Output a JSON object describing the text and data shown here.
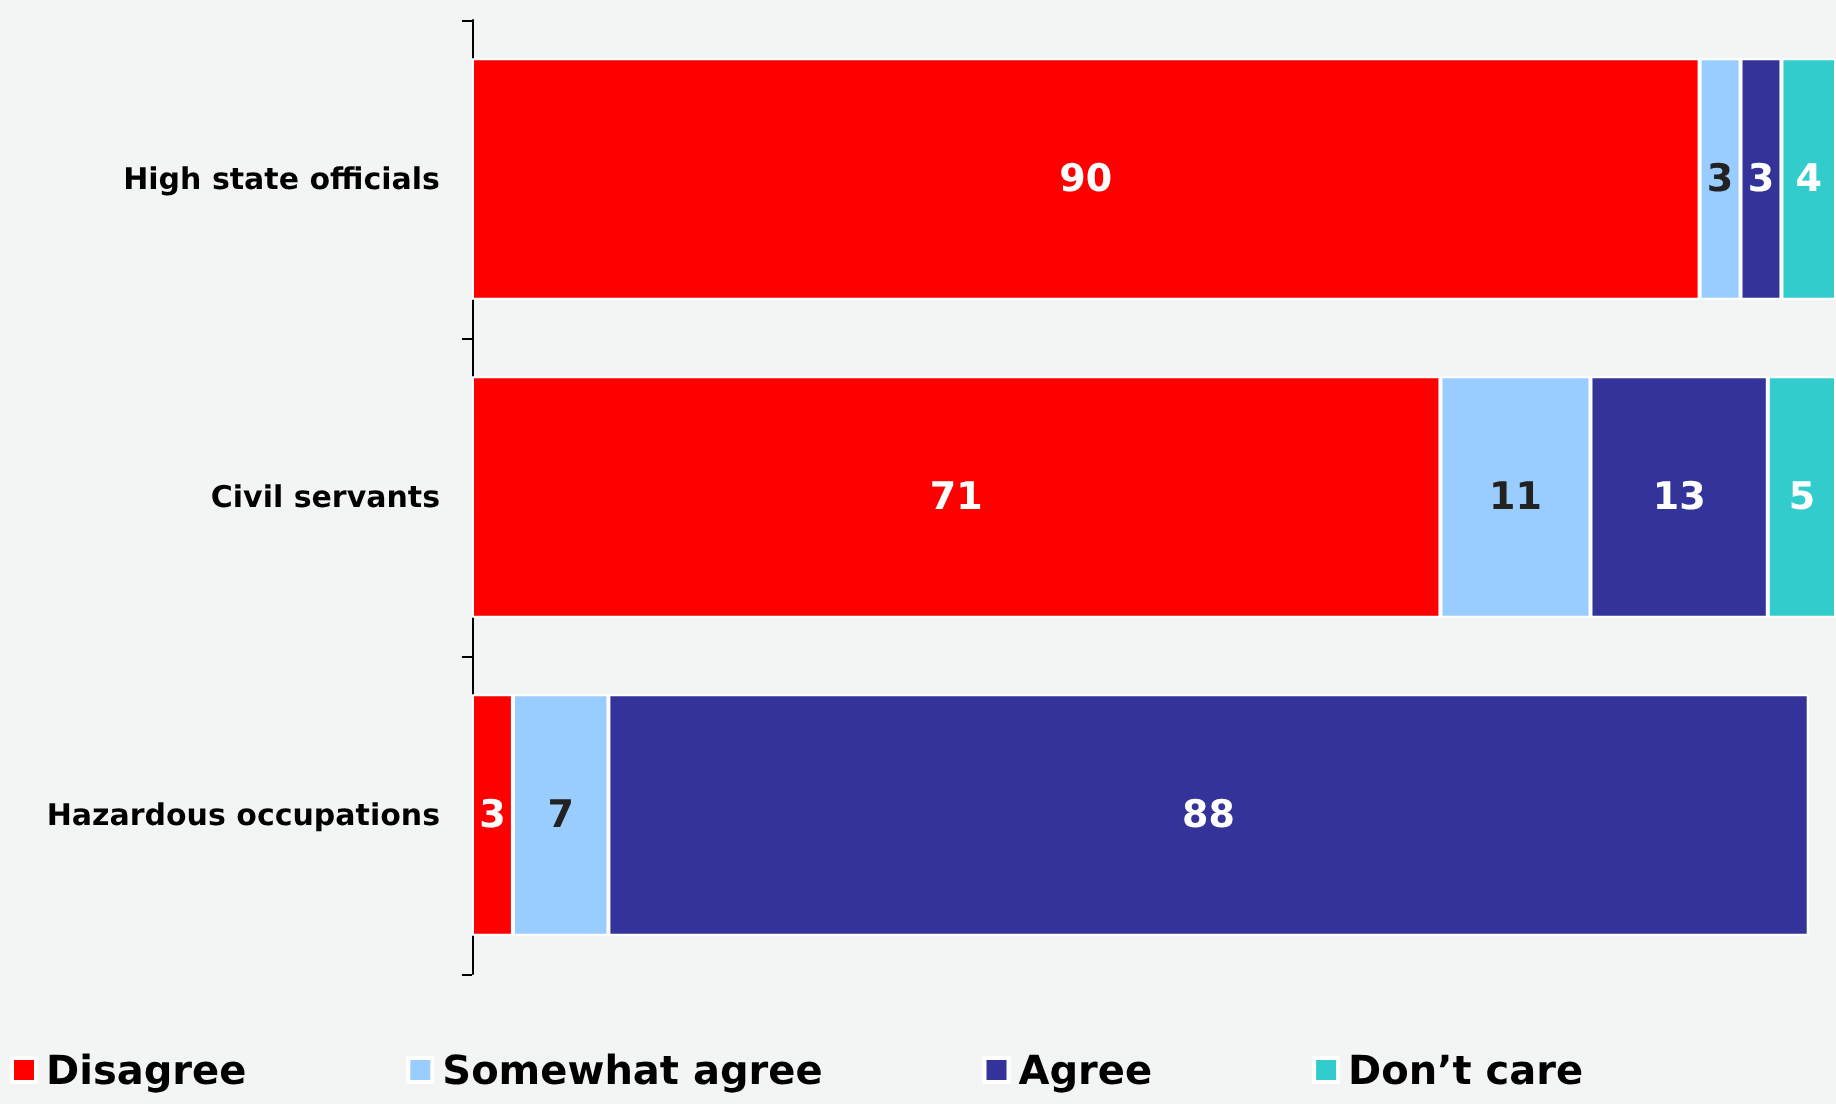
{
  "chart_data": {
    "type": "bar",
    "orientation": "horizontal",
    "stacked": true,
    "categories": [
      "High state officials",
      "Civil servants",
      "Hazardous occupations"
    ],
    "series": [
      {
        "name": "Disagree",
        "color": "#ff0000",
        "values": [
          90,
          71,
          3
        ]
      },
      {
        "name": "Somewhat agree",
        "color": "#99ccff",
        "values": [
          3,
          11,
          7
        ]
      },
      {
        "name": "Agree",
        "color": "#333399",
        "values": [
          3,
          13,
          88
        ]
      },
      {
        "name": "Don’t care",
        "color": "#33cccc",
        "values": [
          4,
          5,
          null
        ]
      }
    ],
    "xlim": [
      0,
      100
    ],
    "tick_labels": "y",
    "data_labels": true,
    "legend": "bottom"
  }
}
